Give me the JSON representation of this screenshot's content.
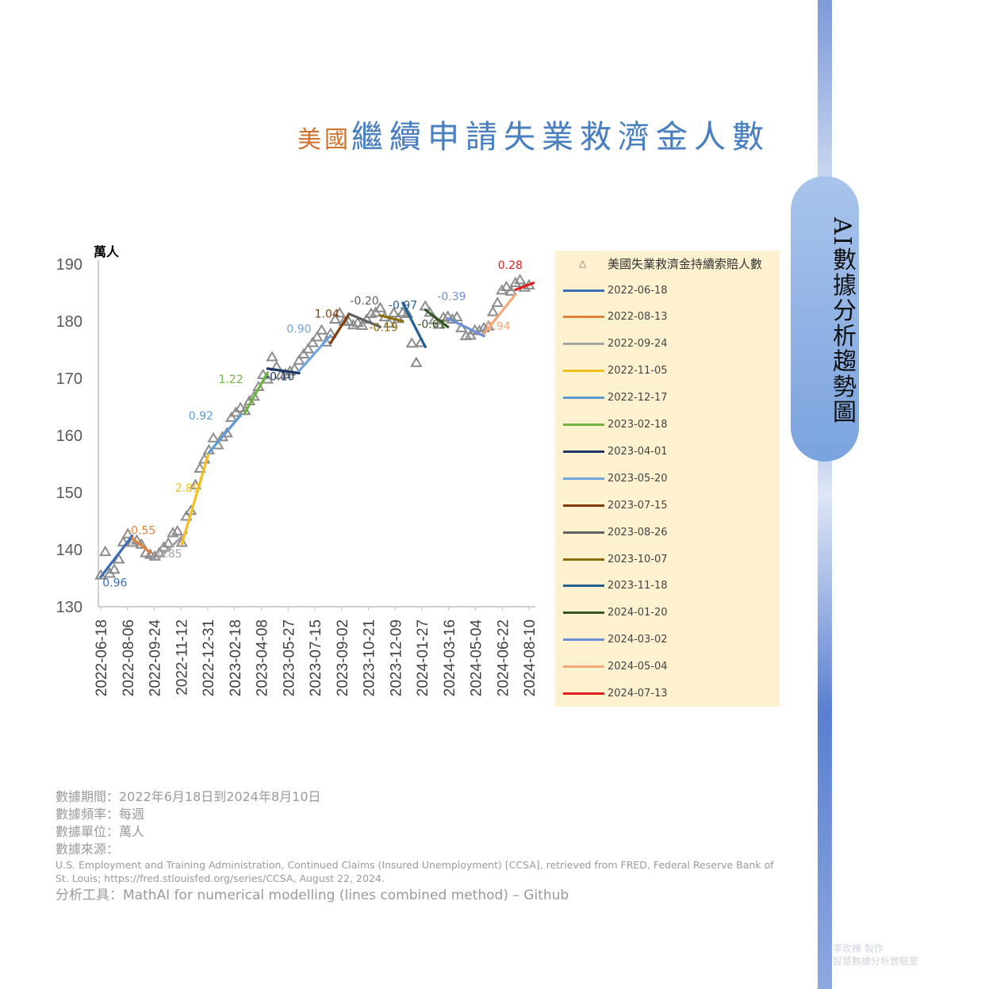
{
  "title_prefix": "美國",
  "title_main": "繼續申請失業救濟金人數",
  "side_title": "AI數據分析趨勢圖",
  "chart_data": {
    "type": "line",
    "ylabel": "萬人",
    "ylim": [
      130,
      190
    ],
    "yticks": [
      130,
      140,
      150,
      160,
      170,
      180,
      190
    ],
    "xticks": [
      "2022-06-18",
      "2022-08-06",
      "2022-09-24",
      "2022-11-12",
      "2022-12-31",
      "2023-02-18",
      "2023-04-08",
      "2023-05-27",
      "2023-07-15",
      "2023-09-02",
      "2023-10-21",
      "2023-12-09",
      "2024-01-27",
      "2024-03-16",
      "2024-05-04",
      "2024-06-22",
      "2024-08-10"
    ],
    "legend_title": "美國失業救濟金持續索賠人數",
    "observations_weekly": [
      135.5,
      139.6,
      135.8,
      136.5,
      138.3,
      141.3,
      142.7,
      141.2,
      141.6,
      140.9,
      139.4,
      139.1,
      138.8,
      139.4,
      140.4,
      141.1,
      142.9,
      143.2,
      141.2,
      145.8,
      146.8,
      151.3,
      154.2,
      155.8,
      157.4,
      159.5,
      158.3,
      159.7,
      160.4,
      163.1,
      164.0,
      164.8,
      164.3,
      166.0,
      166.8,
      168.5,
      170.6,
      169.8,
      173.7,
      172.0,
      170.6,
      170.7,
      171.2,
      171.6,
      173.1,
      174.2,
      175.1,
      176.2,
      177.2,
      178.4,
      176.3,
      177.8,
      180.3,
      181.4,
      180.0,
      179.9,
      179.3,
      179.7,
      179.2,
      180.3,
      181.3,
      181.5,
      182.3,
      180.7,
      179.6,
      181.4,
      180.4,
      181.5,
      181.3,
      176.1,
      172.7,
      176.2,
      182.6,
      181.5,
      180.2,
      179.4,
      180.6,
      180.8,
      180.3,
      180.7,
      178.8,
      177.4,
      177.5,
      178.4,
      178.3,
      178.8,
      179.1,
      181.6,
      183.2,
      185.4,
      186.0,
      185.2,
      186.7,
      187.2,
      185.9,
      186.3
    ],
    "segments": [
      {
        "start": "2022-06-18",
        "slope": "0.96",
        "color": "#3d6db5",
        "x0": 0,
        "x1": 7,
        "y0": 135.2,
        "y1": 142.4
      },
      {
        "start": "2022-08-13",
        "slope": "-0.55",
        "color": "#e2823a",
        "x0": 7,
        "x1": 11,
        "y0": 142.0,
        "y1": 139.5
      },
      {
        "start": "2022-09-24",
        "slope": "0.85",
        "color": "#a5a5a5",
        "x0": 13,
        "x1": 19,
        "y0": 138.6,
        "y1": 143.0
      },
      {
        "start": "2022-11-05",
        "slope": "2.89",
        "color": "#f4bf1b",
        "x0": 18,
        "x1": 24,
        "y0": 141.0,
        "y1": 157.0
      },
      {
        "start": "2022-12-17",
        "slope": "0.92",
        "color": "#5d9bd5",
        "x0": 24,
        "x1": 31,
        "y0": 157.0,
        "y1": 163.5
      },
      {
        "start": "2023-02-18",
        "slope": "1.22",
        "color": "#6db43f",
        "x0": 32,
        "x1": 37,
        "y0": 164.0,
        "y1": 171.0
      },
      {
        "start": "2023-04-01",
        "slope": "-0.10",
        "color": "#1f3864",
        "x0": 37,
        "x1": 44,
        "y0": 171.7,
        "y1": 170.9
      },
      {
        "start": "2023-05-20",
        "slope": "0.90",
        "color": "#71a6dc",
        "x0": 44,
        "x1": 51,
        "y0": 171.3,
        "y1": 177.5
      },
      {
        "start": "2023-07-15",
        "slope": "1.04",
        "color": "#843c0c",
        "x0": 51,
        "x1": 55,
        "y0": 176.2,
        "y1": 181.2
      },
      {
        "start": "2023-08-26",
        "slope": "-0.20",
        "color": "#606060",
        "x0": 55,
        "x1": 62,
        "y0": 181.3,
        "y1": 179.0
      },
      {
        "start": "2023-10-07",
        "slope": "-0.19",
        "color": "#8a6d07",
        "x0": 62,
        "x1": 67,
        "y0": 181.0,
        "y1": 180.0
      },
      {
        "start": "2023-11-18",
        "slope": "-0.97",
        "color": "#255e91",
        "x0": 67,
        "x1": 72,
        "y0": 183.2,
        "y1": 175.5
      },
      {
        "start": "2024-01-20",
        "slope": "-0.61",
        "color": "#375623",
        "x0": 72,
        "x1": 77,
        "y0": 182.0,
        "y1": 179.0
      },
      {
        "start": "2024-03-02",
        "slope": "-0.39",
        "color": "#6f8fd8",
        "x0": 77,
        "x1": 85,
        "y0": 180.5,
        "y1": 177.4
      },
      {
        "start": "2024-05-04",
        "slope": "0.94",
        "color": "#f3a878",
        "x0": 85,
        "x1": 92,
        "y0": 177.8,
        "y1": 184.7
      },
      {
        "start": "2024-07-13",
        "slope": "0.28",
        "color": "#e11d1d",
        "x0": 92,
        "x1": 96,
        "y0": 185.5,
        "y1": 186.7
      }
    ]
  },
  "footer": {
    "period": "數據期間：2022年6月18日到2024年8月10日",
    "frequency": "數據頻率：每週",
    "unit": "數據單位：萬人",
    "source_label": "數據來源：",
    "source_text": "U.S. Employment and Training Administration, Continued Claims (Insured Unemployment) [CCSA], retrieved from FRED, Federal Reserve Bank of St. Louis; https://fred.stlouisfed.org/series/CCSA, August 22, 2024.",
    "tool": "分析工具：MathAI for numerical modelling (lines combined method) – Github"
  },
  "credit_line1": "李玫樺 製作",
  "credit_line2": "智慧數據分析實驗室"
}
